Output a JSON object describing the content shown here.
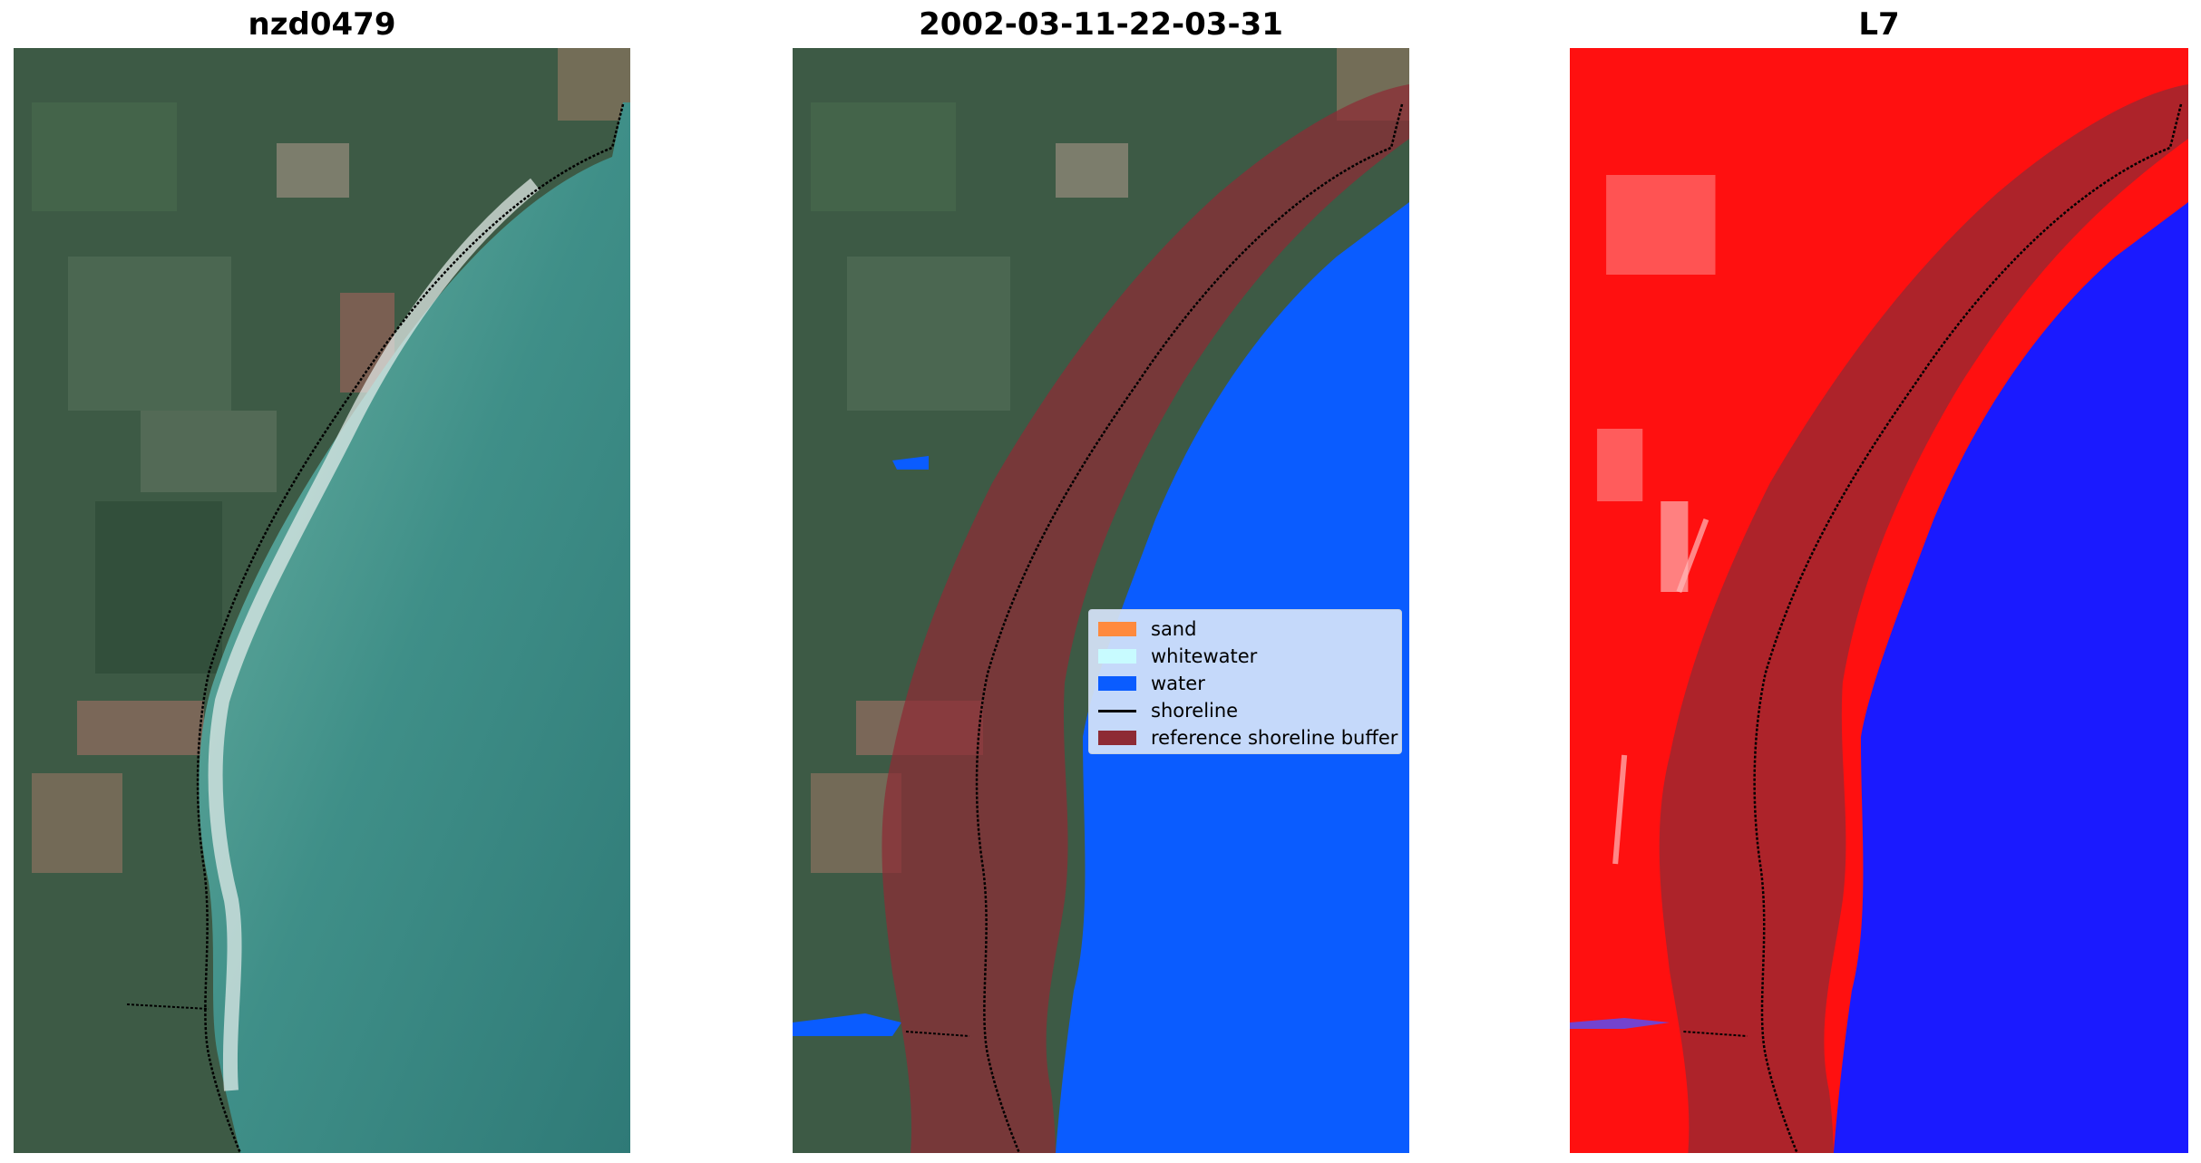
{
  "panels": [
    {
      "title": "nzd0479",
      "kind": "rgb"
    },
    {
      "title": "2002-03-11-22-03-31",
      "kind": "classified"
    },
    {
      "title": "L7",
      "kind": "mndwi"
    }
  ],
  "legend": {
    "items": [
      {
        "label": "sand",
        "color": "#ff8a3d",
        "type": "patch"
      },
      {
        "label": "whitewater",
        "color": "#c8fbff",
        "type": "patch"
      },
      {
        "label": "water",
        "color": "#0a5cff",
        "type": "patch"
      },
      {
        "label": "shoreline",
        "color": "#000000",
        "type": "line"
      },
      {
        "label": "reference shoreline buffer",
        "color": "#8e2b35",
        "type": "patch"
      }
    ]
  },
  "colors": {
    "land": "#3d5a45",
    "sea_rgb": "#3f8f88",
    "water_class": "#0a5cff",
    "buffer": "#8e2b35",
    "mndwi_land": "#ff1010",
    "mndwi_water": "#1a1aff"
  }
}
